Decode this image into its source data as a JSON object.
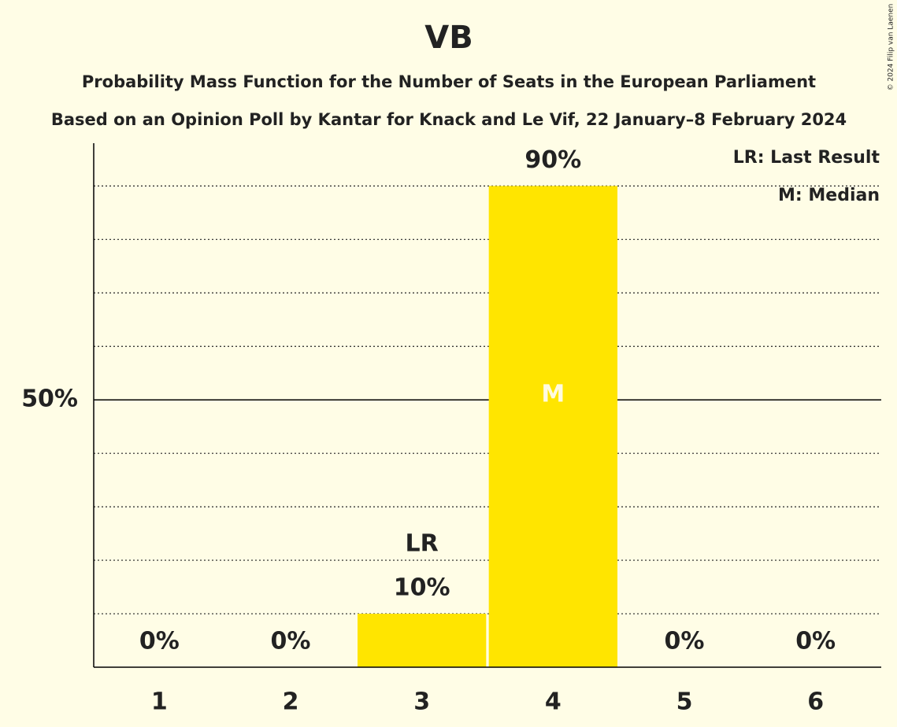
{
  "chart_data": {
    "type": "bar",
    "title": "VB",
    "subtitle": "Probability Mass Function for the Number of Seats in the European Parliament",
    "subtitle2": "Based on an Opinion Poll by Kantar for Knack and Le Vif, 22 January–8 February 2024",
    "categories": [
      "1",
      "2",
      "3",
      "4",
      "5",
      "6"
    ],
    "values": [
      0,
      0,
      10,
      90,
      0,
      0
    ],
    "value_labels": [
      "0%",
      "0%",
      "10%",
      "90%",
      "0%",
      "0%"
    ],
    "bar_annotations": [
      null,
      null,
      "LR",
      "M",
      null,
      null
    ],
    "color": "#ffe500",
    "ylim": [
      0,
      98
    ],
    "yticks": [
      {
        "value": 50,
        "label": "50%"
      }
    ],
    "grid_minor": [
      10,
      20,
      30,
      40,
      60,
      70,
      80,
      90
    ],
    "legend": [
      "LR: Last Result",
      "M: Median"
    ],
    "credit": "© 2024 Filip van Laenen"
  }
}
